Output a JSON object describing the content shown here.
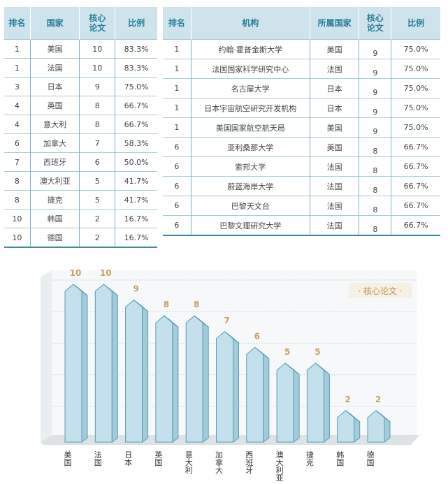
{
  "country_table": {
    "headers": [
      "排名",
      "国家",
      "核心\n论文",
      "比例"
    ],
    "rows": [
      [
        "1",
        "美国",
        "10",
        "83.3%"
      ],
      [
        "1",
        "法国",
        "10",
        "83.3%"
      ],
      [
        "3",
        "日本",
        "9",
        "75.0%"
      ],
      [
        "4",
        "英国",
        "8",
        "66.7%"
      ],
      [
        "4",
        "意大利",
        "8",
        "66.7%"
      ],
      [
        "6",
        "加拿大",
        "7",
        "58.3%"
      ],
      [
        "7",
        "西班牙",
        "6",
        "50.0%"
      ],
      [
        "8",
        "澳大利亚",
        "5",
        "41.7%"
      ],
      [
        "8",
        "捷克",
        "5",
        "41.7%"
      ],
      [
        "10",
        "韩国",
        "2",
        "16.7%"
      ],
      [
        "10",
        "德国",
        "2",
        "16.7%"
      ]
    ]
  },
  "institution_table": {
    "headers": [
      "排名",
      "机构",
      "所属国家",
      "核心\n论文",
      "比例"
    ],
    "rows": [
      [
        "1",
        "约翰·霍普金斯大学",
        "美国",
        "9",
        "75.0%"
      ],
      [
        "1",
        "法国国家科学研究中心",
        "法国",
        "9",
        "75.0%"
      ],
      [
        "1",
        "名古屋大学",
        "日本",
        "9",
        "75.0%"
      ],
      [
        "1",
        "日本宇宙航空研究开发机构",
        "日本",
        "9",
        "75.0%"
      ],
      [
        "1",
        "美国国家航空航天局",
        "美国",
        "9",
        "75.0%"
      ],
      [
        "6",
        "亚利桑那大学",
        "美国",
        "8",
        "66.7%"
      ],
      [
        "6",
        "索邦大学",
        "法国",
        "8",
        "66.7%"
      ],
      [
        "6",
        "蔚蓝海岸大学",
        "法国",
        "8",
        "66.7%"
      ],
      [
        "6",
        "巴黎天文台",
        "法国",
        "8",
        "66.7%"
      ],
      [
        "6",
        "巴黎文理研究大学",
        "法国",
        "8",
        "66.7%"
      ]
    ]
  },
  "chart_data": {
    "type": "bar",
    "categories": [
      "美国",
      "法国",
      "日本",
      "英国",
      "意大利",
      "加拿大",
      "西班牙",
      "澳大利亚",
      "捷克",
      "韩国",
      "德国"
    ],
    "series": [
      {
        "name": "核心论文",
        "values": [
          10,
          10,
          9,
          8,
          8,
          7,
          6,
          5,
          5,
          2,
          2
        ]
      }
    ],
    "legend": "· 核心论文 ·",
    "legend_position": "top-right",
    "ylim": [
      0,
      10
    ],
    "grid": true,
    "colors": {
      "bar_front": "#c3e0ec",
      "bar_side": "#a3cbda",
      "bar_top": "#dcedf4",
      "bar_stroke": "#5b9db5",
      "value_label": "#c8a264",
      "legend_text": "#b8935c"
    }
  }
}
